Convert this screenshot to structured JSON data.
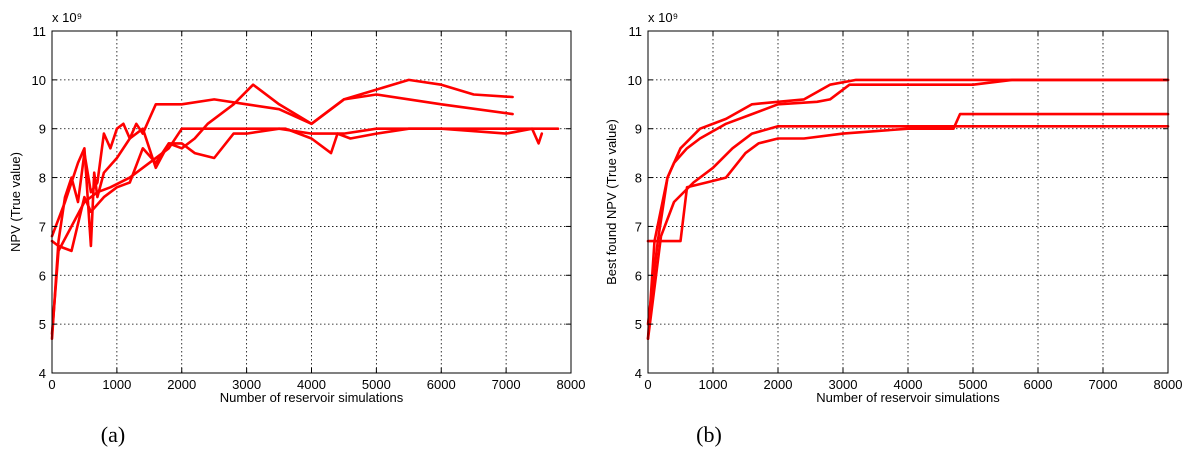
{
  "figure": {
    "panels": [
      {
        "caption": "(a)",
        "exponent_label": "x 10⁹"
      },
      {
        "caption": "(b)",
        "exponent_label": "x 10⁹"
      }
    ]
  },
  "colors": {
    "line": "#ff0000",
    "axis": "#000000",
    "grid": "#000000",
    "background": "#ffffff"
  },
  "chart_data": [
    {
      "type": "line",
      "xlabel": "Number of reservoir simulations",
      "ylabel": "NPV (True value)",
      "xlim": [
        0,
        8000
      ],
      "ylim": [
        4,
        11
      ],
      "xticks": [
        0,
        1000,
        2000,
        3000,
        4000,
        5000,
        6000,
        7000,
        8000
      ],
      "yticks": [
        4,
        5,
        6,
        7,
        8,
        9,
        10,
        11
      ],
      "y_multiplier": "1e9",
      "grid": true,
      "series": [
        {
          "x": [
            0,
            100,
            200,
            300,
            400,
            500,
            600,
            700,
            800,
            900,
            1000,
            1100,
            1200,
            1300,
            1400,
            1500,
            1600,
            2000,
            2500,
            3000,
            3500,
            4000,
            4500,
            5000,
            5500,
            6000,
            6500,
            7100
          ],
          "y": [
            4.7,
            6.7,
            7.6,
            8.0,
            7.5,
            8.5,
            7.7,
            7.9,
            8.9,
            8.6,
            9.0,
            9.1,
            8.8,
            9.1,
            8.9,
            9.2,
            9.5,
            9.5,
            9.6,
            9.5,
            9.4,
            9.1,
            9.6,
            9.8,
            10.0,
            9.9,
            9.7,
            9.65
          ]
        },
        {
          "x": [
            0,
            200,
            400,
            500,
            600,
            650,
            700,
            800,
            1000,
            1200,
            1400,
            1600,
            1800,
            2000,
            2200,
            2400,
            2800,
            3100,
            3200,
            3500,
            4000,
            4500,
            5000,
            6000,
            7100
          ],
          "y": [
            6.8,
            7.5,
            8.3,
            8.6,
            6.6,
            8.1,
            7.6,
            8.1,
            8.4,
            8.8,
            9.0,
            8.2,
            8.7,
            8.6,
            8.8,
            9.1,
            9.5,
            9.9,
            9.8,
            9.5,
            9.1,
            9.6,
            9.7,
            9.5,
            9.3
          ]
        },
        {
          "x": [
            0,
            100,
            300,
            500,
            600,
            800,
            1000,
            1200,
            1400,
            1600,
            1800,
            2000,
            2200,
            2500,
            2800,
            3000,
            3500,
            4000,
            4500,
            5000,
            6000,
            7000,
            7400,
            7500,
            7550
          ],
          "y": [
            6.7,
            6.6,
            6.5,
            7.6,
            7.3,
            7.6,
            7.8,
            7.9,
            8.6,
            8.3,
            8.7,
            8.7,
            8.5,
            8.4,
            8.9,
            8.9,
            9.0,
            8.9,
            8.9,
            9.0,
            9.0,
            8.9,
            9.0,
            8.7,
            8.9
          ]
        },
        {
          "x": [
            0,
            100,
            300,
            500,
            700,
            900,
            1200,
            1500,
            1800,
            2000,
            2400,
            3000,
            3600,
            4000,
            4300,
            4400,
            4600,
            5000,
            5500,
            6500,
            7100,
            7300,
            7800
          ],
          "y": [
            4.8,
            6.5,
            7.0,
            7.5,
            7.7,
            7.8,
            8.0,
            8.3,
            8.6,
            9.0,
            9.0,
            9.0,
            9.0,
            8.8,
            8.5,
            8.9,
            8.8,
            8.9,
            9.0,
            9.0,
            9.0,
            9.0,
            9.0
          ]
        }
      ]
    },
    {
      "type": "line",
      "xlabel": "Number of reservoir simulations",
      "ylabel": "Best found NPV (True value)",
      "xlim": [
        0,
        8000
      ],
      "ylim": [
        4,
        11
      ],
      "xticks": [
        0,
        1000,
        2000,
        3000,
        4000,
        5000,
        6000,
        7000,
        8000
      ],
      "yticks": [
        4,
        5,
        6,
        7,
        8,
        9,
        10,
        11
      ],
      "y_multiplier": "1e9",
      "grid": true,
      "series": [
        {
          "x": [
            0,
            100,
            300,
            500,
            800,
            1200,
            1600,
            2000,
            2400,
            2800,
            3200,
            8000
          ],
          "y": [
            4.7,
            6.7,
            8.0,
            8.6,
            9.0,
            9.2,
            9.5,
            9.55,
            9.6,
            9.9,
            10.0,
            10.0
          ]
        },
        {
          "x": [
            0,
            150,
            300,
            400,
            600,
            800,
            1200,
            1600,
            2000,
            2600,
            2800,
            3100,
            5000,
            5600,
            8000
          ],
          "y": [
            5.0,
            6.7,
            8.0,
            8.3,
            8.6,
            8.8,
            9.1,
            9.3,
            9.5,
            9.55,
            9.6,
            9.9,
            9.9,
            10.0,
            10.0
          ]
        },
        {
          "x": [
            0,
            100,
            500,
            600,
            900,
            1200,
            1500,
            1700,
            2000,
            2400,
            3000,
            4000,
            4700,
            4800,
            8000
          ],
          "y": [
            6.7,
            6.7,
            6.7,
            7.8,
            7.9,
            8.0,
            8.5,
            8.7,
            8.8,
            8.8,
            8.9,
            9.0,
            9.0,
            9.3,
            9.3
          ]
        },
        {
          "x": [
            0,
            200,
            400,
            700,
            1000,
            1300,
            1600,
            2000,
            2600,
            3200,
            4000,
            8000
          ],
          "y": [
            4.7,
            6.8,
            7.5,
            7.9,
            8.2,
            8.6,
            8.9,
            9.05,
            9.05,
            9.05,
            9.05,
            9.05
          ]
        }
      ]
    }
  ]
}
